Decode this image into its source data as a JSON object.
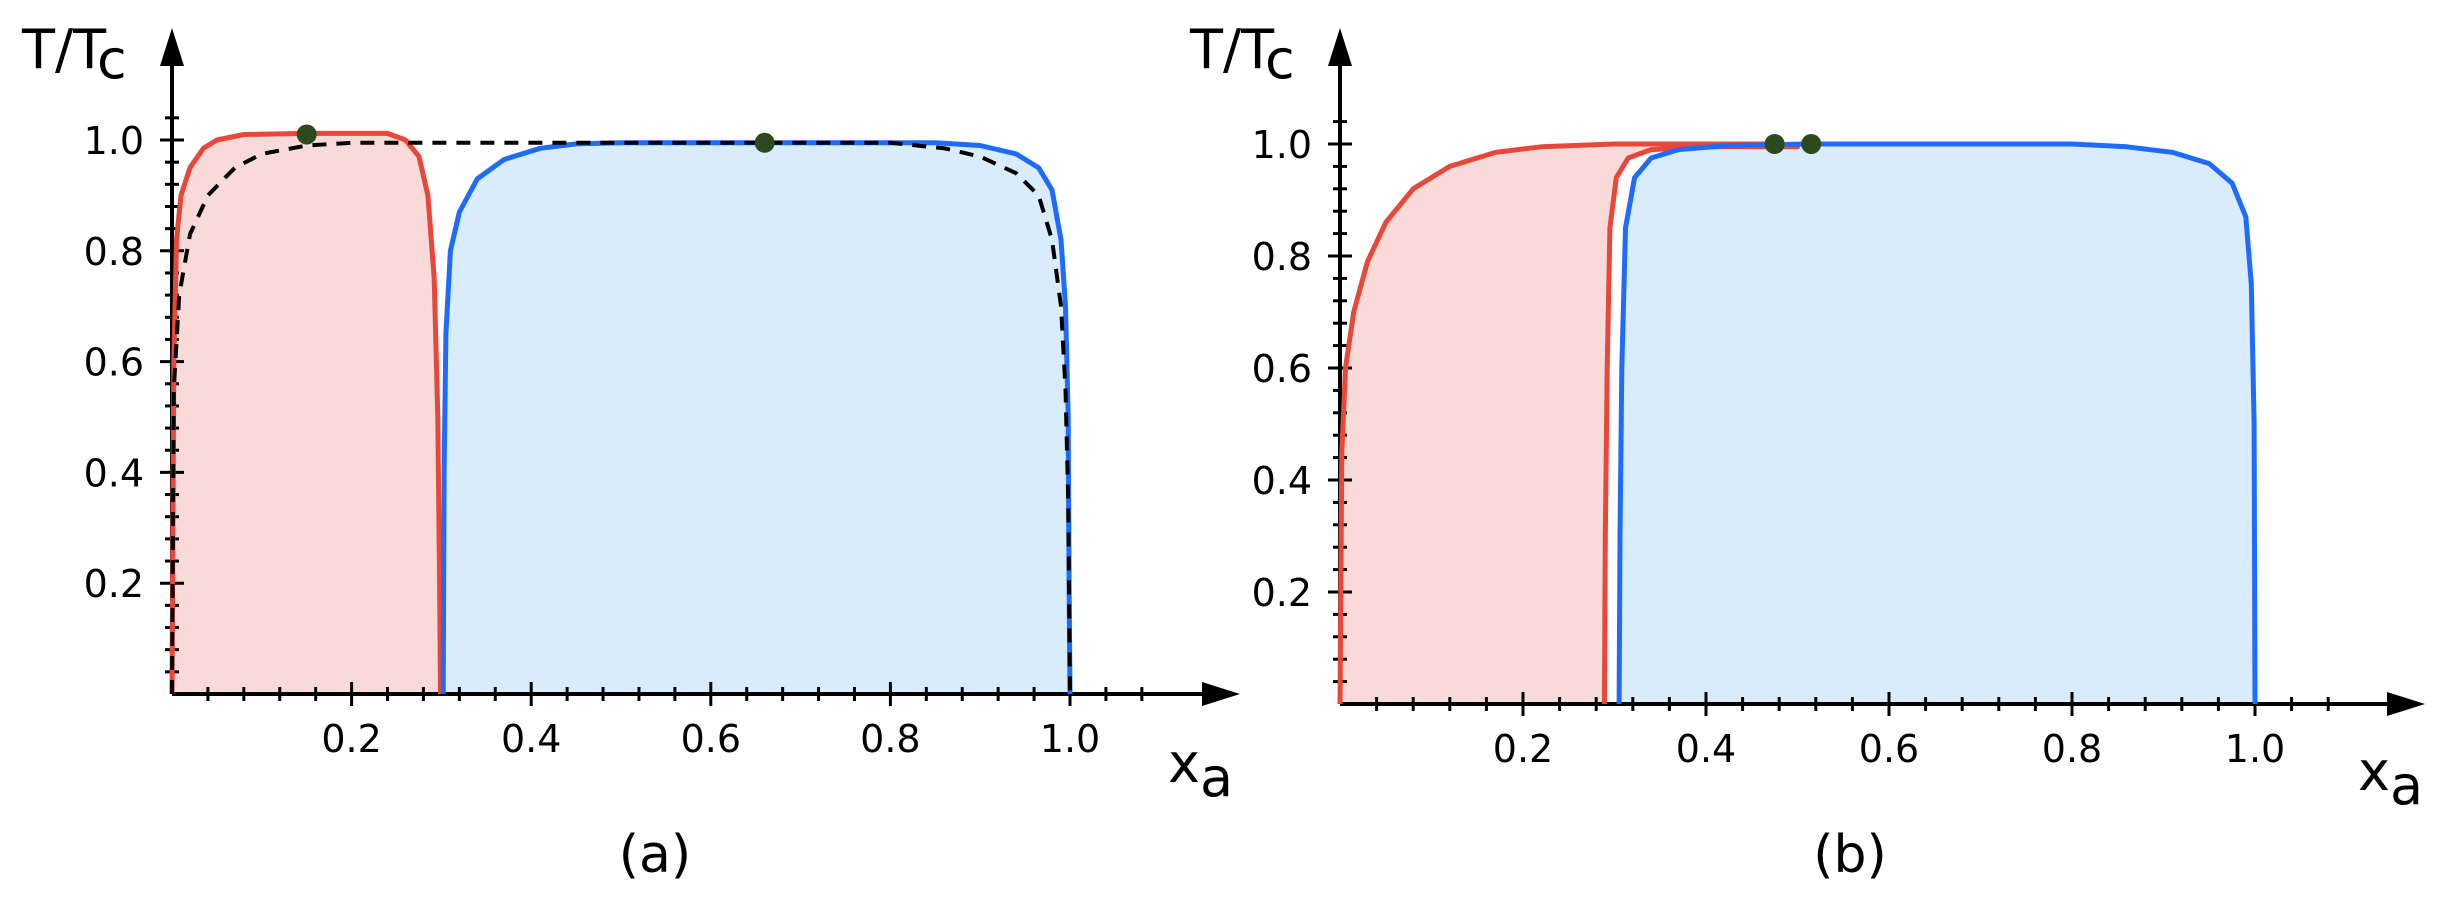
{
  "colors": {
    "red_line": "#e8473a",
    "red_fill": "#f8dbd8",
    "blue_line": "#1f6bff",
    "blue_fill": "#d9ecfb",
    "dot": "#2c4a1e",
    "axis": "#000000"
  },
  "chart_data": [
    {
      "panel": "(a)",
      "type": "area",
      "xlabel": "x",
      "xlabel_sub": "a",
      "ylabel": "T/T",
      "ylabel_sub": "c",
      "xlim": [
        0,
        1.15
      ],
      "ylim": [
        0,
        1.1
      ],
      "xticks": [
        0.2,
        0.4,
        0.6,
        0.8,
        1.0
      ],
      "xtick_labels": [
        "0.2",
        "0.4",
        "0.6",
        "0.8",
        "1.0"
      ],
      "yticks": [
        0.2,
        0.4,
        0.6,
        0.8,
        1.0
      ],
      "ytick_labels": [
        "0.2",
        "0.4",
        "0.6",
        "0.8",
        "1.0"
      ],
      "series": [
        {
          "color": "red",
          "filled": true,
          "points": [
            [
              0.0,
              0.0
            ],
            [
              0.002,
              0.6
            ],
            [
              0.005,
              0.82
            ],
            [
              0.01,
              0.9
            ],
            [
              0.02,
              0.95
            ],
            [
              0.035,
              0.985
            ],
            [
              0.05,
              1.0
            ],
            [
              0.08,
              1.01
            ],
            [
              0.15,
              1.012
            ],
            [
              0.24,
              1.012
            ],
            [
              0.26,
              1.0
            ],
            [
              0.275,
              0.97
            ],
            [
              0.285,
              0.9
            ],
            [
              0.292,
              0.75
            ],
            [
              0.296,
              0.5
            ],
            [
              0.298,
              0.2
            ],
            [
              0.299,
              0.0
            ]
          ]
        },
        {
          "color": "blue",
          "filled": true,
          "points": [
            [
              0.302,
              0.0
            ],
            [
              0.303,
              0.4
            ],
            [
              0.305,
              0.65
            ],
            [
              0.31,
              0.8
            ],
            [
              0.32,
              0.87
            ],
            [
              0.34,
              0.93
            ],
            [
              0.37,
              0.965
            ],
            [
              0.41,
              0.985
            ],
            [
              0.45,
              0.993
            ],
            [
              0.5,
              0.995
            ],
            [
              0.66,
              0.995
            ],
            [
              0.85,
              0.995
            ],
            [
              0.9,
              0.99
            ],
            [
              0.94,
              0.975
            ],
            [
              0.965,
              0.95
            ],
            [
              0.98,
              0.91
            ],
            [
              0.99,
              0.82
            ],
            [
              0.995,
              0.7
            ],
            [
              0.998,
              0.5
            ],
            [
              0.999,
              0.2
            ],
            [
              1.0,
              0.0
            ]
          ]
        },
        {
          "color": "black",
          "style": "dashed",
          "points": [
            [
              0.0,
              0.0
            ],
            [
              0.002,
              0.55
            ],
            [
              0.008,
              0.72
            ],
            [
              0.02,
              0.83
            ],
            [
              0.04,
              0.9
            ],
            [
              0.07,
              0.95
            ],
            [
              0.1,
              0.975
            ],
            [
              0.15,
              0.99
            ],
            [
              0.2,
              0.995
            ],
            [
              0.3,
              0.995
            ],
            [
              0.5,
              0.995
            ],
            [
              0.8,
              0.995
            ],
            [
              0.86,
              0.985
            ],
            [
              0.9,
              0.97
            ],
            [
              0.94,
              0.94
            ],
            [
              0.965,
              0.9
            ],
            [
              0.98,
              0.82
            ],
            [
              0.99,
              0.7
            ],
            [
              0.995,
              0.55
            ],
            [
              0.998,
              0.35
            ],
            [
              1.0,
              0.0
            ]
          ]
        }
      ],
      "markers": [
        [
          0.15,
          1.01
        ],
        [
          0.66,
          0.995
        ]
      ]
    },
    {
      "panel": "(b)",
      "type": "area",
      "xlabel": "x",
      "xlabel_sub": "a",
      "ylabel": "T/T",
      "ylabel_sub": "c",
      "xlim": [
        0,
        1.15
      ],
      "ylim": [
        0,
        1.1
      ],
      "xticks": [
        0.2,
        0.4,
        0.6,
        0.8,
        1.0
      ],
      "xtick_labels": [
        "0.2",
        "0.4",
        "0.6",
        "0.8",
        "1.0"
      ],
      "yticks": [
        0.2,
        0.4,
        0.6,
        0.8,
        1.0
      ],
      "ytick_labels": [
        "0.2",
        "0.4",
        "0.6",
        "0.8",
        "1.0"
      ],
      "series": [
        {
          "color": "red",
          "filled": true,
          "points": [
            [
              0.0,
              0.0
            ],
            [
              0.002,
              0.45
            ],
            [
              0.006,
              0.6
            ],
            [
              0.015,
              0.7
            ],
            [
              0.03,
              0.79
            ],
            [
              0.05,
              0.86
            ],
            [
              0.08,
              0.92
            ],
            [
              0.12,
              0.96
            ],
            [
              0.17,
              0.985
            ],
            [
              0.22,
              0.995
            ],
            [
              0.3,
              1.0
            ],
            [
              0.48,
              1.0
            ],
            [
              0.5,
              0.995
            ],
            [
              0.48,
              0.995
            ],
            [
              0.4,
              0.995
            ],
            [
              0.34,
              0.99
            ],
            [
              0.315,
              0.975
            ],
            [
              0.302,
              0.94
            ],
            [
              0.295,
              0.85
            ],
            [
              0.292,
              0.6
            ],
            [
              0.29,
              0.3
            ],
            [
              0.289,
              0.0
            ]
          ]
        },
        {
          "color": "blue",
          "filled": true,
          "points": [
            [
              0.305,
              0.0
            ],
            [
              0.306,
              0.3
            ],
            [
              0.308,
              0.6
            ],
            [
              0.312,
              0.85
            ],
            [
              0.322,
              0.94
            ],
            [
              0.34,
              0.975
            ],
            [
              0.37,
              0.99
            ],
            [
              0.42,
              0.997
            ],
            [
              0.51,
              1.0
            ],
            [
              0.8,
              1.0
            ],
            [
              0.86,
              0.995
            ],
            [
              0.91,
              0.985
            ],
            [
              0.95,
              0.965
            ],
            [
              0.975,
              0.93
            ],
            [
              0.99,
              0.87
            ],
            [
              0.996,
              0.75
            ],
            [
              0.999,
              0.5
            ],
            [
              1.0,
              0.0
            ]
          ]
        }
      ],
      "markers": [
        [
          0.475,
          1.0
        ],
        [
          0.515,
          1.0
        ]
      ]
    }
  ]
}
